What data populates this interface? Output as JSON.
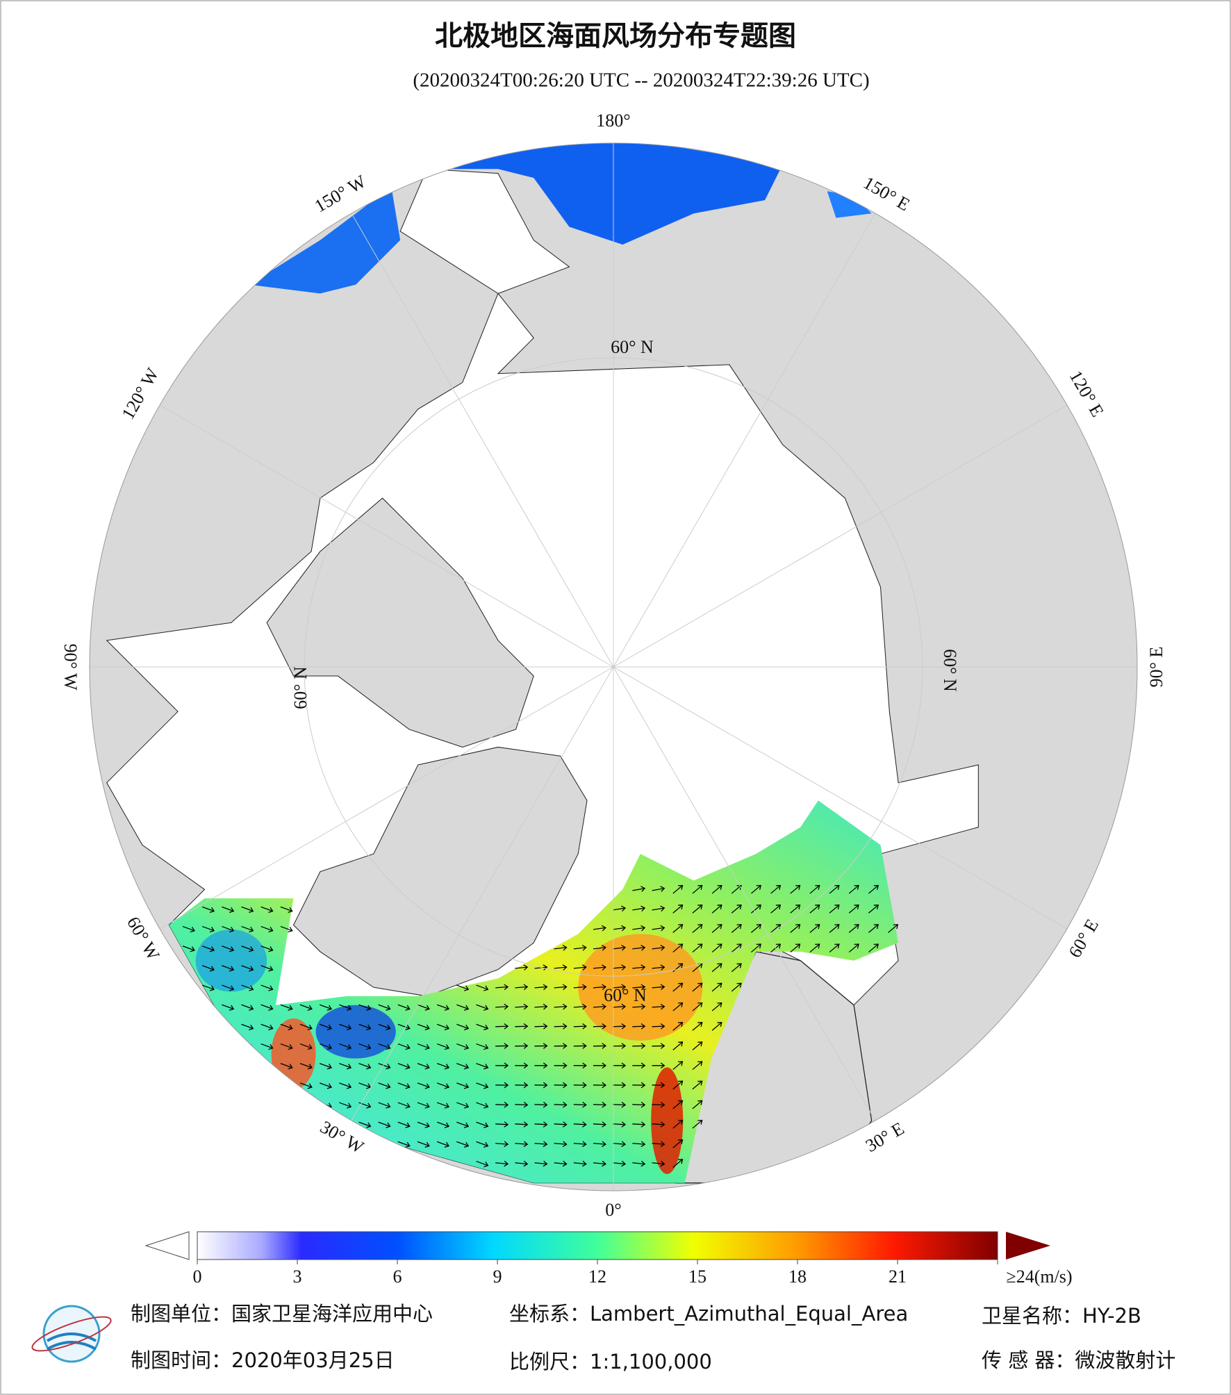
{
  "header": {
    "title": "北极地区海面风场分布专题图",
    "subtitle": "(20200324T00:26:20 UTC -- 20200324T22:39:26 UTC)"
  },
  "map": {
    "meridian_labels": [
      "180°",
      "150° E",
      "120° E",
      "90° E",
      "60° E",
      "30° E",
      "0°",
      "30° W",
      "60° W",
      "90° W",
      "120° W",
      "150° W"
    ],
    "parallel_labels": [
      "60° N",
      "60° N",
      "60° N",
      "60° N"
    ]
  },
  "colorbar": {
    "range": [
      0,
      24
    ],
    "ticks": [
      0,
      3,
      6,
      9,
      12,
      15,
      18,
      21,
      {
        "value": 24,
        "label": "≥24(m/s)"
      }
    ]
  },
  "footer": {
    "unit": "制图单位：国家卫星海洋应用中心",
    "projection": "坐标系：Lambert_Azimuthal_Equal_Area",
    "satellite": "卫星名称：HY-2B",
    "date": "制图时间：2020年03月25日",
    "scale": "比例尺：1:1,100,000",
    "sensor": "传 感 器：微波散射计"
  }
}
